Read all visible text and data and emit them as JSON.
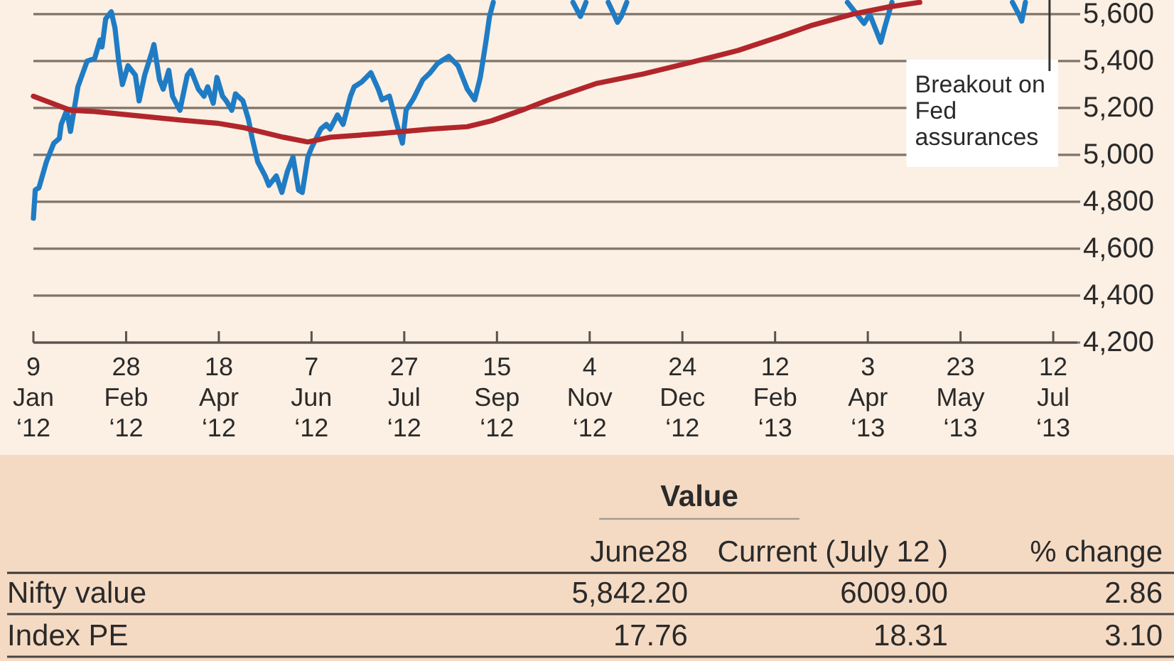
{
  "chart_data": [
    {
      "type": "line",
      "xlim": [
        "2012-01-09",
        "2013-07-25"
      ],
      "ylim": [
        4200,
        5660
      ],
      "xticks": [
        {
          "value": "2012-01-09",
          "label": "9 Jan ‘12"
        },
        {
          "value": "2012-02-28",
          "label": "28 Feb ‘12"
        },
        {
          "value": "2012-04-18",
          "label": "18 Apr ‘12"
        },
        {
          "value": "2012-06-07",
          "label": "7 Jun ‘12"
        },
        {
          "value": "2012-07-27",
          "label": "27 Jul ‘12"
        },
        {
          "value": "2012-09-15",
          "label": "15 Sep ‘12"
        },
        {
          "value": "2012-11-04",
          "label": "4 Nov ‘12"
        },
        {
          "value": "2012-12-24",
          "label": "24 Dec ‘12"
        },
        {
          "value": "2013-02-12",
          "label": "12 Feb ‘13"
        },
        {
          "value": "2013-04-03",
          "label": "3 Apr ‘13"
        },
        {
          "value": "2013-05-23",
          "label": "23 May ‘13"
        },
        {
          "value": "2013-07-12",
          "label": "12 Jul ‘13"
        }
      ],
      "yticks": [
        {
          "value": 4200,
          "label": "4,200"
        },
        {
          "value": 4400,
          "label": "4,400"
        },
        {
          "value": 4600,
          "label": "4,600"
        },
        {
          "value": 4800,
          "label": "4,800"
        },
        {
          "value": 5000,
          "label": "5,000"
        },
        {
          "value": 5200,
          "label": "5,200"
        },
        {
          "value": 5400,
          "label": "5,400"
        },
        {
          "value": 5600,
          "label": "5,600"
        }
      ],
      "grid": "y",
      "series": [
        {
          "color": "#1f7cc4",
          "x": [
            "2012-01-09",
            "2012-01-10",
            "2012-01-12",
            "2012-01-16",
            "2012-01-20",
            "2012-01-23",
            "2012-01-24",
            "2012-01-27",
            "2012-01-29",
            "2012-02-02",
            "2012-02-07",
            "2012-02-11",
            "2012-02-14",
            "2012-02-15",
            "2012-02-17",
            "2012-02-20",
            "2012-02-22",
            "2012-02-24",
            "2012-02-26",
            "2012-02-29",
            "2012-03-04",
            "2012-03-06",
            "2012-03-09",
            "2012-03-13",
            "2012-03-14",
            "2012-03-17",
            "2012-03-19",
            "2012-03-22",
            "2012-03-24",
            "2012-03-28",
            "2012-04-01",
            "2012-04-03",
            "2012-04-07",
            "2012-04-10",
            "2012-04-12",
            "2012-04-15",
            "2012-04-17",
            "2012-04-20",
            "2012-04-22",
            "2012-04-25",
            "2012-04-27",
            "2012-05-01",
            "2012-05-04",
            "2012-05-06",
            "2012-05-09",
            "2012-05-13",
            "2012-05-15",
            "2012-05-19",
            "2012-05-22",
            "2012-05-25",
            "2012-05-28",
            "2012-05-31",
            "2012-06-02",
            "2012-06-05",
            "2012-06-07",
            "2012-06-12",
            "2012-06-15",
            "2012-06-17",
            "2012-06-21",
            "2012-06-24",
            "2012-06-28",
            "2012-06-30",
            "2012-07-04",
            "2012-07-09",
            "2012-07-13",
            "2012-07-15",
            "2012-07-19",
            "2012-07-23",
            "2012-07-26",
            "2012-07-28",
            "2012-08-01",
            "2012-08-06",
            "2012-08-10",
            "2012-08-14",
            "2012-08-20",
            "2012-08-25",
            "2012-08-30",
            "2012-09-03",
            "2012-09-06",
            "2012-09-09",
            "2012-09-11",
            "2012-09-13",
            "2012-09-20",
            "2012-10-26",
            "2012-10-30",
            "2012-11-02",
            "2012-11-07",
            "2012-11-14",
            "2012-11-17",
            "2012-11-19",
            "2012-11-21",
            "2012-11-24",
            "2012-11-28",
            "2013-03-23",
            "2013-03-28",
            "2013-04-01",
            "2013-04-04",
            "2013-04-08",
            "2013-04-10",
            "2013-04-12",
            "2013-04-16",
            "2013-04-20",
            "2013-06-20",
            "2013-06-24",
            "2013-06-25",
            "2013-06-27"
          ],
          "values": [
            4730,
            4850,
            4860,
            4970,
            5050,
            5070,
            5130,
            5190,
            5100,
            5290,
            5400,
            5410,
            5490,
            5460,
            5580,
            5610,
            5540,
            5400,
            5300,
            5380,
            5340,
            5230,
            5340,
            5440,
            5470,
            5320,
            5280,
            5360,
            5250,
            5190,
            5340,
            5360,
            5280,
            5250,
            5290,
            5220,
            5330,
            5250,
            5230,
            5190,
            5260,
            5230,
            5150,
            5070,
            4970,
            4910,
            4870,
            4910,
            4840,
            4930,
            4990,
            4850,
            4840,
            4990,
            5030,
            5110,
            5130,
            5110,
            5170,
            5130,
            5250,
            5290,
            5310,
            5350,
            5280,
            5235,
            5250,
            5130,
            5050,
            5190,
            5240,
            5320,
            5350,
            5390,
            5420,
            5380,
            5280,
            5235,
            5330,
            5480,
            5590,
            5650,
            null,
            5650,
            5590,
            5650,
            null,
            5650,
            5600,
            5565,
            5590,
            5650,
            null,
            5650,
            5600,
            5560,
            5600,
            5520,
            5480,
            5540,
            5650,
            null,
            5650,
            5590,
            5570,
            5650
          ]
        },
        {
          "color": "#b1262b",
          "x": [
            "2012-01-09",
            "2012-01-29",
            "2012-02-11",
            "2012-03-07",
            "2012-04-02",
            "2012-04-17",
            "2012-05-02",
            "2012-05-23",
            "2012-06-05",
            "2012-06-17",
            "2012-07-13",
            "2012-08-10",
            "2012-08-30",
            "2012-09-12",
            "2012-09-30",
            "2012-10-13",
            "2012-11-08",
            "2012-12-03",
            "2012-12-29",
            "2013-01-23",
            "2013-02-15",
            "2013-03-03",
            "2013-03-26",
            "2013-04-14",
            "2013-05-01"
          ],
          "values": [
            5250,
            5190,
            5185,
            5165,
            5145,
            5135,
            5115,
            5075,
            5055,
            5075,
            5090,
            5110,
            5120,
            5145,
            5195,
            5235,
            5305,
            5345,
            5395,
            5445,
            5505,
            5550,
            5600,
            5630,
            5650
          ]
        }
      ],
      "ref_lines": [
        {
          "axis": "x",
          "value": "2013-07-10",
          "label": "Breakout on Fed assurances",
          "color": "#333333"
        }
      ]
    },
    {
      "type": "other",
      "title": "Value",
      "categories": [
        "June28",
        "Current (July 12 )",
        "% change"
      ],
      "y_categories": [
        "Nifty value",
        "Index PE"
      ],
      "cell_labels": [
        [
          "5,842.20",
          "6009.00",
          "2.86"
        ],
        [
          "17.76",
          "18.31",
          "3.10"
        ]
      ]
    }
  ]
}
